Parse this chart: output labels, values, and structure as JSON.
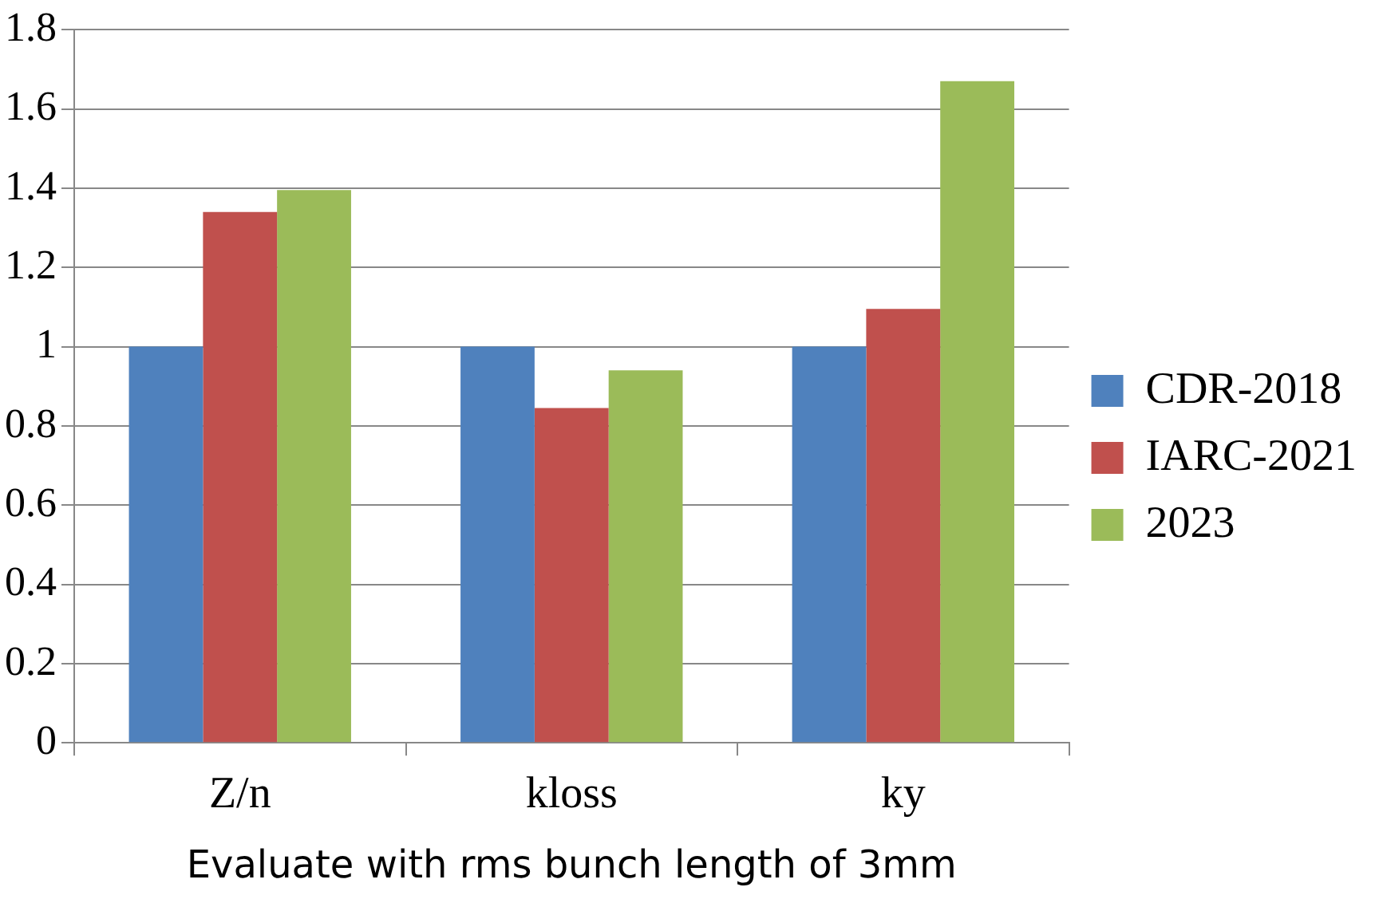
{
  "chart_data": {
    "type": "bar",
    "xlabel": "Evaluate with rms bunch length of 3mm",
    "categories": [
      "Z/n",
      "kloss",
      "ky"
    ],
    "series": [
      {
        "name": "CDR-2018",
        "color": "#4f81bd",
        "values": [
          1,
          1,
          1
        ]
      },
      {
        "name": "IARC-2021",
        "color": "#c0504d",
        "values": [
          1.34,
          0.845,
          1.095
        ]
      },
      {
        "name": "2023",
        "color": "#9bbb59",
        "values": [
          1.395,
          0.94,
          1.67
        ]
      }
    ],
    "ylim": [
      0,
      1.8
    ],
    "yticks": [
      0,
      0.2,
      0.4,
      0.6,
      0.8,
      1,
      1.2,
      1.4,
      1.6,
      1.8
    ],
    "grid": "y",
    "legend": "right"
  }
}
